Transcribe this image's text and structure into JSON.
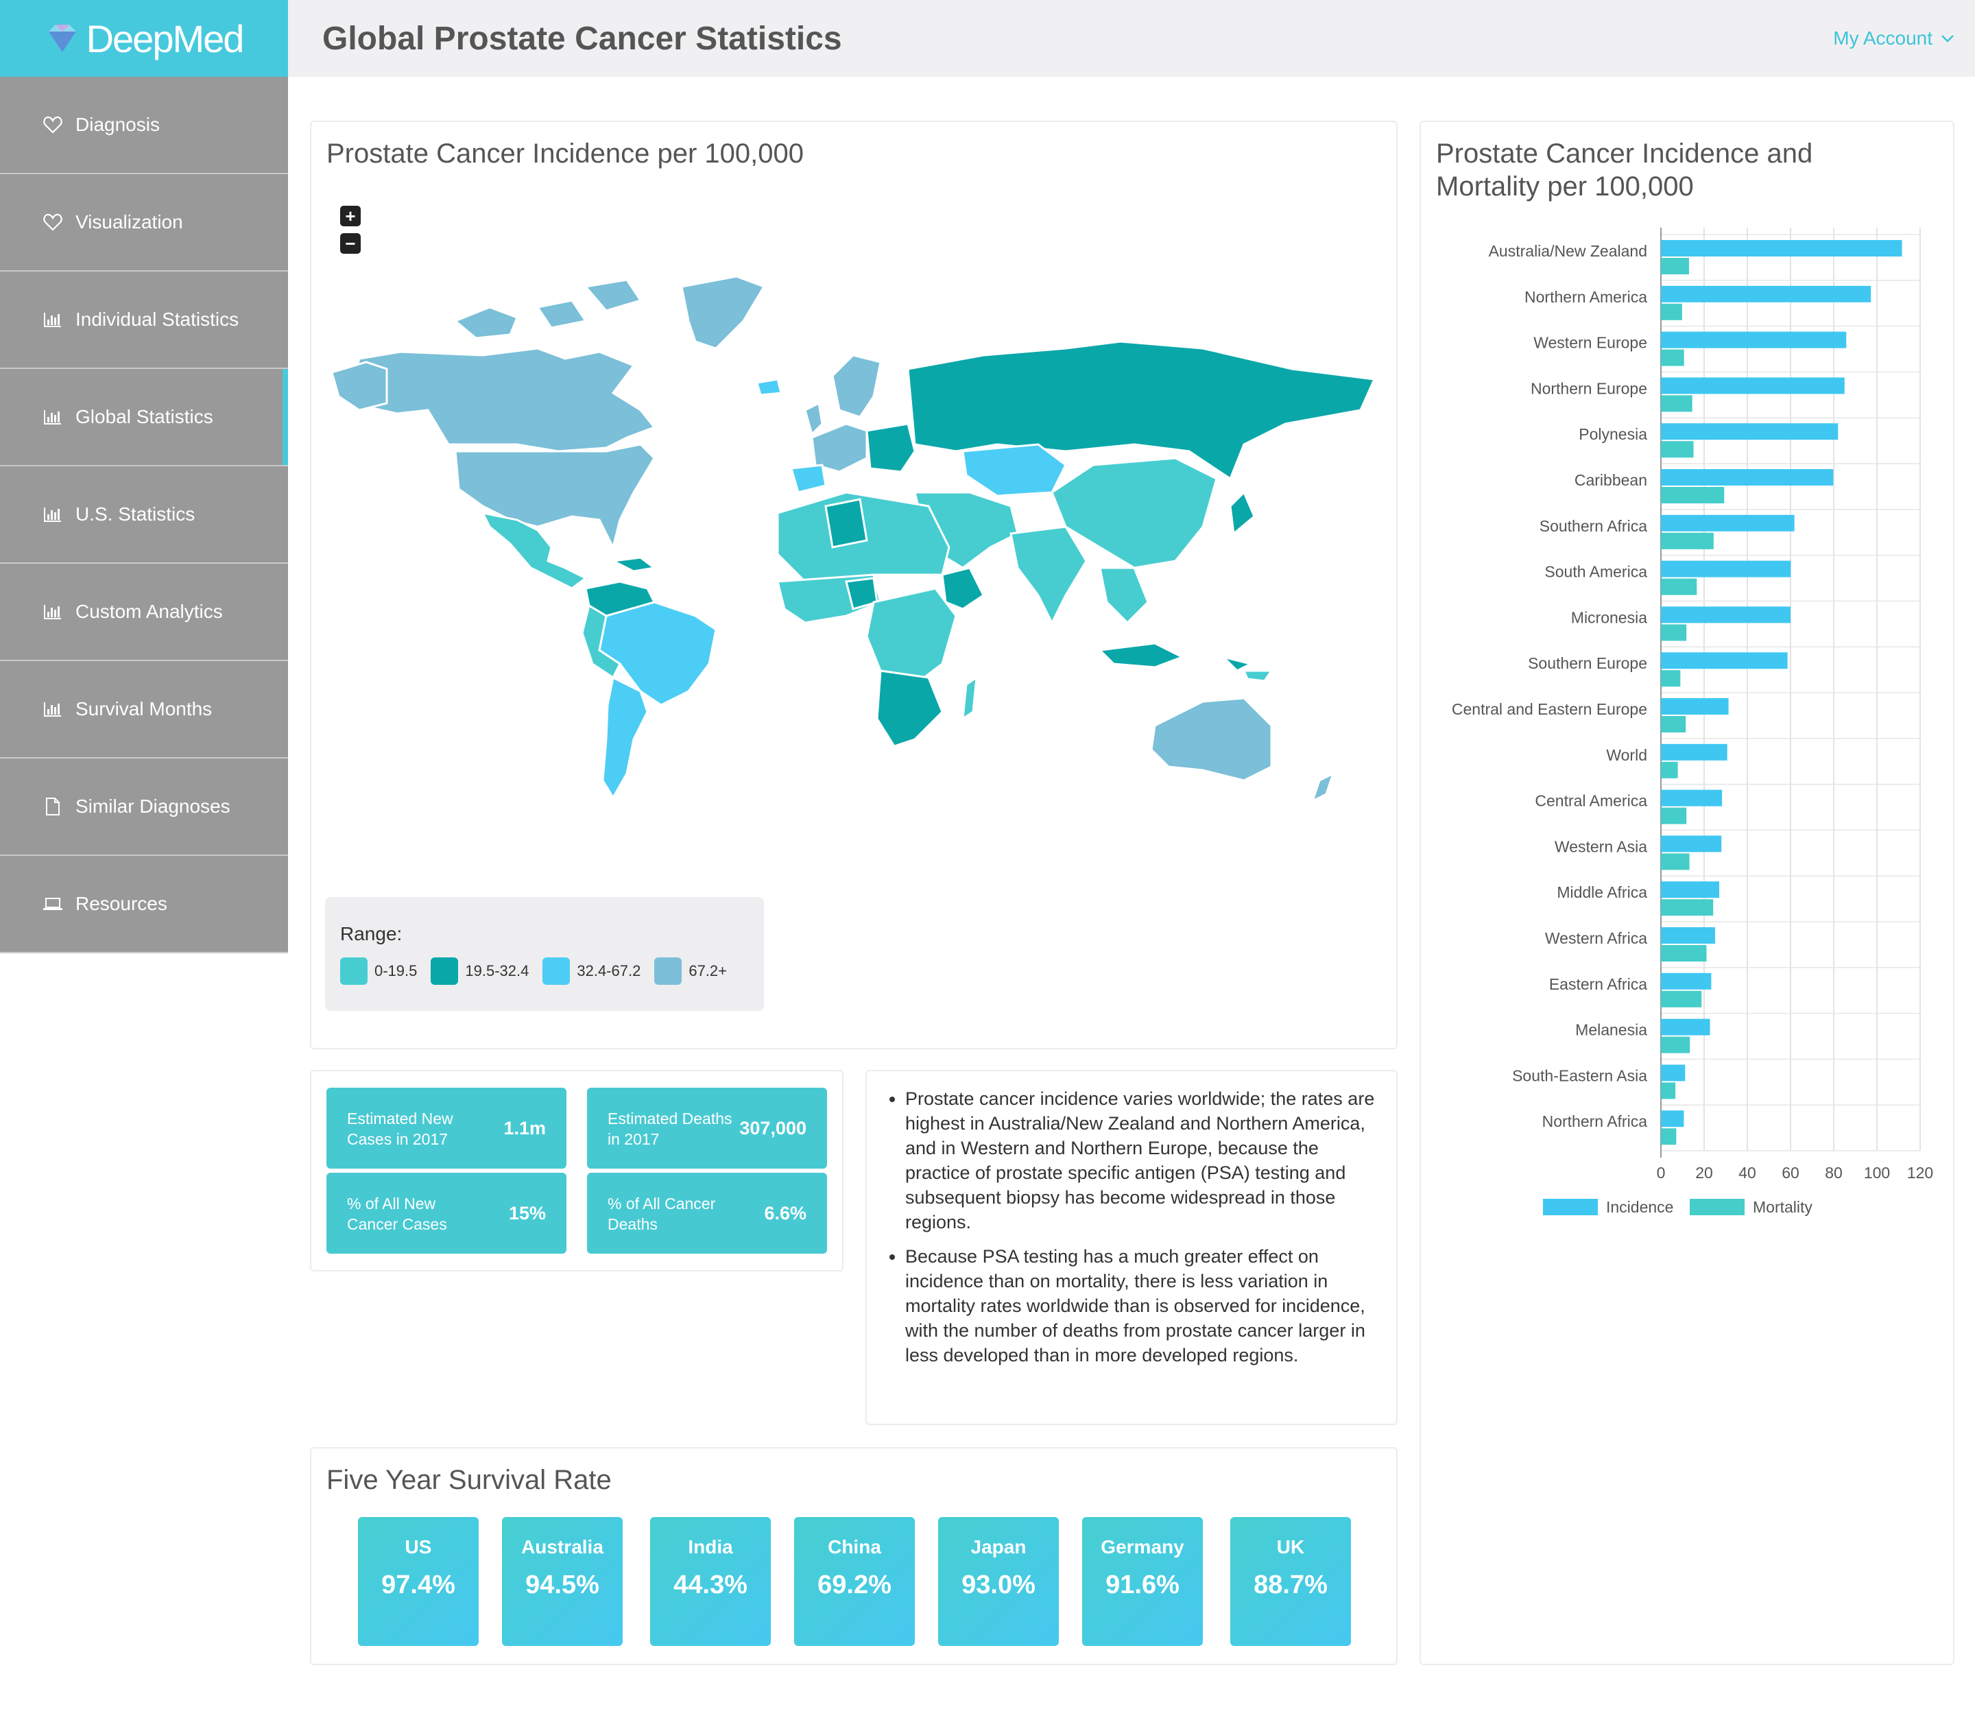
{
  "brand": {
    "name": "DeepMed"
  },
  "header": {
    "title": "Global Prostate Cancer Statistics",
    "account": "My Account"
  },
  "colors": {
    "accent": "#47c9dd",
    "range1": "#47cdd0",
    "range2": "#0aa7a9",
    "range3": "#4ccdf5",
    "range4": "#7bbfd8",
    "incidence": "#3fc7f2",
    "mortality": "#45cdc9"
  },
  "sidebar": {
    "items": [
      {
        "label": "Diagnosis",
        "icon": "heart-icon"
      },
      {
        "label": "Visualization",
        "icon": "heart-icon"
      },
      {
        "label": "Individual Statistics",
        "icon": "bar-chart-icon"
      },
      {
        "label": "Global Statistics",
        "icon": "bar-chart-icon"
      },
      {
        "label": "U.S. Statistics",
        "icon": "bar-chart-icon"
      },
      {
        "label": "Custom Analytics",
        "icon": "bar-chart-icon"
      },
      {
        "label": "Survival Months",
        "icon": "bar-chart-icon"
      },
      {
        "label": "Similar Diagnoses",
        "icon": "document-icon"
      },
      {
        "label": "Resources",
        "icon": "laptop-icon"
      }
    ]
  },
  "map": {
    "title": "Prostate Cancer Incidence per 100,000",
    "zoom_in": "+",
    "zoom_out": "−",
    "legend_title": "Range:",
    "ranges": [
      "0-19.5",
      "19.5-32.4",
      "32.4-67.2",
      "67.2+"
    ]
  },
  "stats": [
    {
      "label": "Estimated New Cases in 2017",
      "value": "1.1m"
    },
    {
      "label": "Estimated Deaths in 2017",
      "value": "307,000"
    },
    {
      "label": "% of All New Cancer Cases",
      "value": "15%"
    },
    {
      "label": "% of All Cancer Deaths",
      "value": "6.6%"
    }
  ],
  "notes": [
    "Prostate cancer incidence varies worldwide; the rates are highest in Australia/New Zealand and Northern America, and in Western and Northern Europe, because the practice of prostate specific antigen (PSA) testing and subsequent biopsy has become widespread in those regions.",
    "Because PSA testing has a much greater effect on incidence than on mortality, there is less variation in mortality rates worldwide than is observed for incidence, with the number of deaths from prostate cancer larger in less developed than in more developed regions."
  ],
  "survival": {
    "title": "Five Year Survival Rate",
    "items": [
      {
        "country": "US",
        "value": "97.4%"
      },
      {
        "country": "Australia",
        "value": "94.5%"
      },
      {
        "country": "India",
        "value": "44.3%"
      },
      {
        "country": "China",
        "value": "69.2%"
      },
      {
        "country": "Japan",
        "value": "93.0%"
      },
      {
        "country": "Germany",
        "value": "91.6%"
      },
      {
        "country": "UK",
        "value": "88.7%"
      }
    ]
  },
  "chart_data": {
    "type": "bar",
    "orientation": "horizontal",
    "title": "Prostate Cancer Incidence and Mortality per 100,000",
    "categories": [
      "Australia/New Zealand",
      "Northern America",
      "Western Europe",
      "Northern Europe",
      "Polynesia",
      "Caribbean",
      "Southern Africa",
      "South America",
      "Micronesia",
      "Southern Europe",
      "Central and Eastern Europe",
      "World",
      "Central America",
      "Western Asia",
      "Middle Africa",
      "Western Africa",
      "Eastern Africa",
      "Melanesia",
      "South-Eastern Asia",
      "Northern Africa"
    ],
    "series": [
      {
        "name": "Incidence",
        "values": [
          111.6,
          97.2,
          85.8,
          85.0,
          82.0,
          79.8,
          61.8,
          60.1,
          60.0,
          58.6,
          31.3,
          30.7,
          28.3,
          28.0,
          27.0,
          25.1,
          23.3,
          22.7,
          11.2,
          10.6
        ]
      },
      {
        "name": "Mortality",
        "values": [
          13.0,
          9.8,
          10.7,
          14.5,
          15.1,
          29.3,
          24.4,
          16.6,
          11.8,
          9.0,
          11.5,
          7.8,
          11.8,
          13.2,
          24.2,
          21.1,
          18.8,
          13.4,
          6.7,
          7.1
        ]
      }
    ],
    "xlim": [
      0,
      120
    ],
    "xticks": [
      0,
      20,
      40,
      60,
      80,
      100,
      120
    ],
    "grid": true,
    "legend": "bottom"
  }
}
